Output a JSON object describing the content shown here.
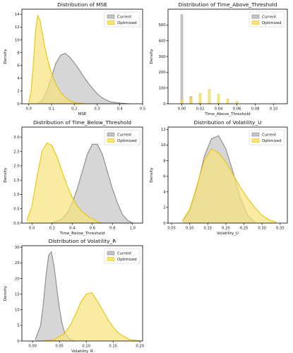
{
  "colors": {
    "current_fill": "#c4c4c4",
    "current_edge": "#8a8a8a",
    "optimized_fill": "#f6e27a",
    "optimized_edge": "#e8c500",
    "axis": "#000000"
  },
  "chart_data": [
    {
      "type": "area",
      "title": "Distribution of MSE",
      "xlabel": "MSE",
      "ylabel": "Density",
      "xlim": [
        -0.03,
        0.5
      ],
      "ylim": [
        0,
        14.8
      ],
      "xticks": [
        0.0,
        0.1,
        0.2,
        0.3,
        0.4,
        0.5
      ],
      "xtick_labels": [
        "0.0",
        "0.1",
        "0.2",
        "0.3",
        "0.4",
        "0.5"
      ],
      "yticks": [
        0,
        2,
        4,
        6,
        8,
        10,
        12,
        14
      ],
      "ytick_labels": [
        "0",
        "2",
        "4",
        "6",
        "8",
        "10",
        "12",
        "14"
      ],
      "legend": "top-right",
      "series": [
        {
          "name": "Current",
          "x": [
            0.04,
            0.06,
            0.08,
            0.1,
            0.12,
            0.14,
            0.16,
            0.18,
            0.2,
            0.22,
            0.24,
            0.26,
            0.28,
            0.3,
            0.32,
            0.34,
            0.36,
            0.4,
            0.44
          ],
          "y": [
            0.1,
            0.6,
            2.0,
            4.2,
            6.4,
            7.6,
            7.9,
            7.3,
            6.4,
            5.4,
            4.3,
            3.3,
            2.4,
            1.6,
            1.0,
            0.6,
            0.3,
            0.1,
            0.0
          ]
        },
        {
          "name": "Optimized",
          "x": [
            0.0,
            0.01,
            0.02,
            0.03,
            0.04,
            0.05,
            0.06,
            0.07,
            0.08,
            0.09,
            0.1,
            0.12,
            0.14,
            0.16,
            0.18,
            0.2,
            0.22,
            0.25
          ],
          "y": [
            0.2,
            1.8,
            6.0,
            11.5,
            13.8,
            13.0,
            11.0,
            9.0,
            7.4,
            6.0,
            4.8,
            3.0,
            1.8,
            1.0,
            0.5,
            0.2,
            0.1,
            0.0
          ]
        }
      ]
    },
    {
      "type": "bar",
      "title": "Distribution of Time_Above_Threshold",
      "xlabel": "Time_Above_Threshold",
      "ylabel": "Density",
      "xlim": [
        -0.015,
        0.115
      ],
      "ylim": [
        0,
        600
      ],
      "xticks": [
        0.0,
        0.02,
        0.04,
        0.06,
        0.08,
        0.1
      ],
      "xtick_labels": [
        "0.00",
        "0.02",
        "0.04",
        "0.06",
        "0.08",
        "0.10"
      ],
      "yticks": [
        0,
        100,
        200,
        300,
        400,
        500
      ],
      "ytick_labels": [
        "0",
        "100",
        "200",
        "300",
        "400",
        "500"
      ],
      "legend": "top-right",
      "series": [
        {
          "name": "Current",
          "x": [
            0.0,
            0.01,
            0.02
          ],
          "y": [
            565,
            45,
            5
          ]
        },
        {
          "name": "Optimized",
          "x": [
            0.0,
            0.01,
            0.02,
            0.03,
            0.04,
            0.05,
            0.06
          ],
          "y": [
            25,
            40,
            65,
            90,
            60,
            30,
            15
          ]
        }
      ]
    },
    {
      "type": "area",
      "title": "Distribution of Time_Below_Threshold",
      "xlabel": "Time_Below_Threshold",
      "ylabel": "Density",
      "xlim": [
        -0.1,
        1.1
      ],
      "ylim": [
        0,
        3.35
      ],
      "xticks": [
        0.0,
        0.2,
        0.4,
        0.6,
        0.8,
        1.0
      ],
      "xtick_labels": [
        "0.0",
        "0.2",
        "0.4",
        "0.6",
        "0.8",
        "1.0"
      ],
      "yticks": [
        0.0,
        0.5,
        1.0,
        1.5,
        2.0,
        2.5,
        3.0
      ],
      "ytick_labels": [
        "0.0",
        "0.5",
        "1.0",
        "1.5",
        "2.0",
        "2.5",
        "3.0"
      ],
      "legend": "top-right",
      "series": [
        {
          "name": "Current",
          "x": [
            0.2,
            0.3,
            0.35,
            0.4,
            0.45,
            0.5,
            0.55,
            0.6,
            0.65,
            0.7,
            0.75,
            0.8,
            0.85,
            0.9,
            0.95,
            1.0
          ],
          "y": [
            0.0,
            0.15,
            0.35,
            0.7,
            1.2,
            1.8,
            2.4,
            2.75,
            2.75,
            2.4,
            1.8,
            1.2,
            0.7,
            0.3,
            0.1,
            0.0
          ]
        },
        {
          "name": "Optimized",
          "x": [
            -0.05,
            0.0,
            0.05,
            0.1,
            0.15,
            0.2,
            0.25,
            0.3,
            0.35,
            0.4,
            0.45,
            0.5,
            0.55,
            0.6,
            0.65,
            0.7
          ],
          "y": [
            0.1,
            0.6,
            1.6,
            2.5,
            2.8,
            2.7,
            2.3,
            1.8,
            1.3,
            0.9,
            0.6,
            0.4,
            0.25,
            0.15,
            0.05,
            0.0
          ]
        }
      ]
    },
    {
      "type": "area",
      "title": "Distribution of Volatility_U",
      "xlabel": "Volatility_U",
      "ylabel": "Density",
      "xlim": [
        0.04,
        0.37
      ],
      "ylim": [
        0,
        12.3
      ],
      "xticks": [
        0.05,
        0.1,
        0.15,
        0.2,
        0.25,
        0.3,
        0.35
      ],
      "xtick_labels": [
        "0.05",
        "0.10",
        "0.15",
        "0.20",
        "0.25",
        "0.30",
        "0.35"
      ],
      "yticks": [
        0,
        2,
        4,
        6,
        8,
        10,
        12
      ],
      "ytick_labels": [
        "0",
        "2",
        "4",
        "6",
        "8",
        "10",
        "12"
      ],
      "legend": "top-right",
      "series": [
        {
          "name": "Current",
          "x": [
            0.08,
            0.1,
            0.12,
            0.14,
            0.16,
            0.18,
            0.2,
            0.22,
            0.24,
            0.26,
            0.28
          ],
          "y": [
            0.2,
            1.5,
            4.5,
            8.5,
            10.8,
            11.2,
            9.5,
            6.5,
            3.2,
            1.0,
            0.1
          ]
        },
        {
          "name": "Optimized",
          "x": [
            0.08,
            0.1,
            0.12,
            0.14,
            0.16,
            0.18,
            0.2,
            0.22,
            0.24,
            0.26,
            0.28,
            0.3,
            0.32,
            0.34
          ],
          "y": [
            0.3,
            1.8,
            4.8,
            8.0,
            9.5,
            9.0,
            7.8,
            6.2,
            4.6,
            3.2,
            2.0,
            1.0,
            0.4,
            0.1
          ]
        }
      ]
    },
    {
      "type": "area",
      "title": "Distribution of Volatility_R",
      "xlabel": "Volatility_R",
      "ylabel": "Density",
      "xlim": [
        -0.02,
        0.205
      ],
      "ylim": [
        0,
        30.5
      ],
      "xticks": [
        0.0,
        0.05,
        0.1,
        0.15,
        0.2
      ],
      "xtick_labels": [
        "0.00",
        "0.05",
        "0.10",
        "0.15",
        "0.20"
      ],
      "yticks": [
        0,
        5,
        10,
        15,
        20,
        25,
        30
      ],
      "ytick_labels": [
        "0",
        "5",
        "10",
        "15",
        "20",
        "25",
        "30"
      ],
      "legend": "top-right",
      "series": [
        {
          "name": "Current",
          "x": [
            0.005,
            0.015,
            0.02,
            0.025,
            0.03,
            0.035,
            0.04,
            0.045,
            0.05,
            0.055,
            0.06,
            0.07,
            0.08
          ],
          "y": [
            0.5,
            5.0,
            12.0,
            21.0,
            27.5,
            28.5,
            24.0,
            17.0,
            10.5,
            5.5,
            2.5,
            0.5,
            0.0
          ]
        },
        {
          "name": "Optimized",
          "x": [
            0.02,
            0.04,
            0.06,
            0.07,
            0.08,
            0.09,
            0.1,
            0.11,
            0.12,
            0.13,
            0.14,
            0.15,
            0.16,
            0.18,
            0.2
          ],
          "y": [
            0.0,
            0.5,
            2.5,
            5.0,
            8.5,
            12.5,
            15.0,
            15.5,
            13.0,
            10.0,
            7.0,
            4.5,
            2.5,
            0.5,
            0.0
          ]
        }
      ]
    }
  ]
}
